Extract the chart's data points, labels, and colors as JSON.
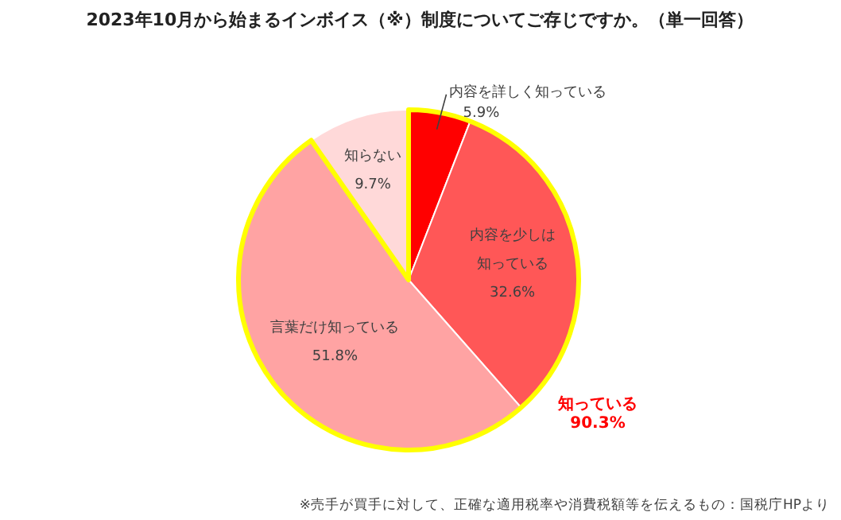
{
  "chart_data": {
    "type": "pie",
    "title": "2023年10月から始まるインボイス（※）制度についてご存じですか。（単一回答）",
    "categories": [
      "内容を詳しく知っている",
      "内容を少しは知っている",
      "言葉だけ知っている",
      "知らない"
    ],
    "values": [
      5.9,
      32.6,
      51.8,
      9.7
    ],
    "colors": [
      "#ff0000",
      "#ff5757",
      "#ffa3a3",
      "#ffd9d9"
    ],
    "value_labels": [
      "5.9%",
      "32.6%",
      "51.8%",
      "9.7%"
    ],
    "annotations": [
      "知っている\n90.3%",
      "※売手が買手に対して、正確な適用税率や消費税額等を伝えるもの：国税庁HPより"
    ]
  }
}
